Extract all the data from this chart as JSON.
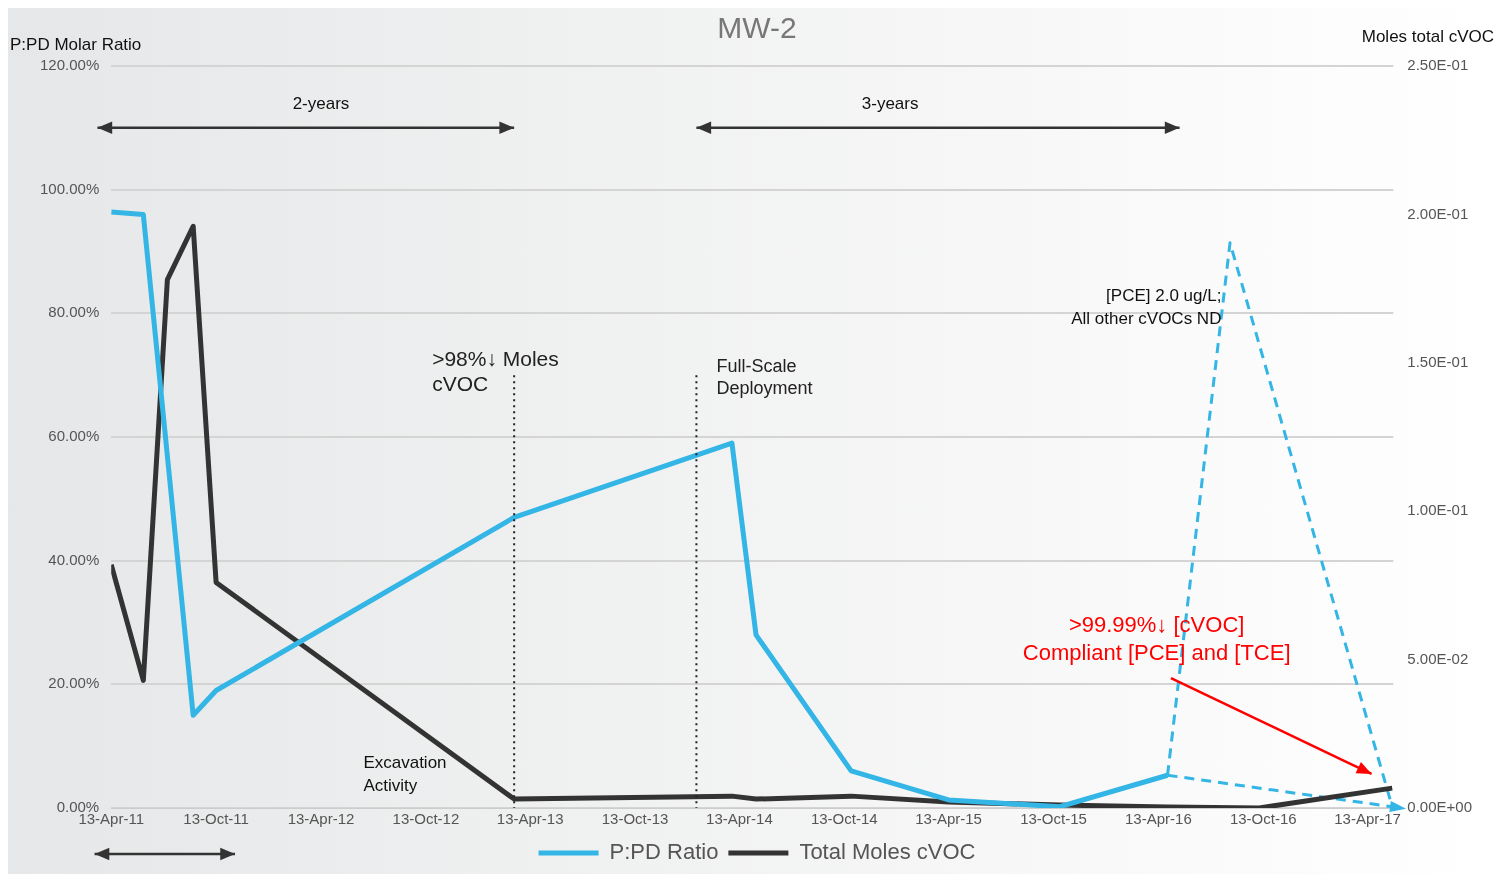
{
  "chart_data": {
    "type": "line",
    "title": "MW-2",
    "ylabel": "P:PD Molar Ratio",
    "y2label": "Moles total cVOC",
    "xlim": [
      "2011-04-13",
      "2017-05-28"
    ],
    "xticks": [
      {
        "value": "2011-04-13",
        "label": "13-Apr-11"
      },
      {
        "value": "2011-10-13",
        "label": "13-Oct-11"
      },
      {
        "value": "2012-04-13",
        "label": "13-Apr-12"
      },
      {
        "value": "2012-10-13",
        "label": "13-Oct-12"
      },
      {
        "value": "2013-04-13",
        "label": "13-Apr-13"
      },
      {
        "value": "2013-10-13",
        "label": "13-Oct-13"
      },
      {
        "value": "2014-04-13",
        "label": "13-Apr-14"
      },
      {
        "value": "2014-10-13",
        "label": "13-Oct-14"
      },
      {
        "value": "2015-04-13",
        "label": "13-Apr-15"
      },
      {
        "value": "2015-10-13",
        "label": "13-Oct-15"
      },
      {
        "value": "2016-04-13",
        "label": "13-Apr-16"
      },
      {
        "value": "2016-10-13",
        "label": "13-Oct-16"
      },
      {
        "value": "2017-04-13",
        "label": "13-Apr-17"
      }
    ],
    "ylim": [
      0,
      120
    ],
    "yticks": [
      {
        "value": 0,
        "label": "0.00%"
      },
      {
        "value": 20,
        "label": "20.00%"
      },
      {
        "value": 40,
        "label": "40.00%"
      },
      {
        "value": 60,
        "label": "60.00%"
      },
      {
        "value": 80,
        "label": "80.00%"
      },
      {
        "value": 100,
        "label": "100.00%"
      },
      {
        "value": 120,
        "label": "120.00%"
      }
    ],
    "y2lim": [
      0,
      0.25
    ],
    "y2ticks": [
      {
        "value": 0,
        "label": "0.00E+00"
      },
      {
        "value": 0.05,
        "label": "5.00E-02"
      },
      {
        "value": 0.1,
        "label": "1.00E-01"
      },
      {
        "value": 0.15,
        "label": "1.50E-01"
      },
      {
        "value": 0.2,
        "label": "2.00E-01"
      },
      {
        "value": 0.25,
        "label": "2.50E-01"
      }
    ],
    "grid": "y",
    "legend": "bottom",
    "marker": "none",
    "series": [
      {
        "name": "P:PD Ratio",
        "color": "#33b5e5",
        "x": [
          "2011-04-13",
          "2011-06-08",
          "2011-09-03",
          "2011-10-13",
          "2013-03-16",
          "2014-03-31",
          "2014-05-12",
          "2014-10-25",
          "2015-04-13",
          "2015-10-24",
          "2016-04-29"
        ],
        "values": [
          96.4,
          96,
          15,
          19,
          47,
          59,
          28,
          6,
          1.3,
          0.2,
          5.3
        ]
      },
      {
        "name": "Total Moles cVOC",
        "color": "#333333",
        "axis": "y2",
        "x": [
          "2011-04-13",
          "2011-06-08",
          "2011-07-20",
          "2011-09-03",
          "2011-10-13",
          "2013-03-16",
          "2014-03-31",
          "2014-05-12",
          "2014-10-25",
          "2015-04-13",
          "2015-10-24",
          "2016-04-29",
          "2016-10-06",
          "2017-05-26"
        ],
        "values": [
          0.082,
          0.043,
          0.178,
          0.196,
          0.076,
          0.003,
          0.004,
          0.003,
          0.004,
          0.002,
          0.001,
          0.0003,
          0,
          0.0067
        ]
      },
      {
        "color": "#33b5e5",
        "line_style": "dashed",
        "x": [
          "2016-04-29",
          "2016-08-16",
          "2017-05-26"
        ],
        "values": [
          5.3,
          91.4,
          0.2
        ]
      },
      {
        "color": "#33b5e5",
        "line_style": "dashed",
        "x": [
          "2016-04-29",
          "2017-05-26"
        ],
        "values": [
          5.3,
          0.2
        ]
      }
    ],
    "ref_lines": [
      {
        "axis": "x",
        "value": "2013-03-16",
        "label": ">98%↓ Moles\ncVOC",
        "line_style": "dotted",
        "color": "#222222"
      },
      {
        "axis": "x",
        "value": "2014-01-28",
        "label": "Full-Scale\nDeployment",
        "line_style": "dotted",
        "color": "#222222"
      }
    ],
    "annotations": [
      "2-years",
      "3-years",
      "Excavation\nActivity",
      "[PCE] 2.0 ug/L;\nAll other cVOCs ND",
      ">99.99%↓ [cVOC]\nCompliant [PCE] and [TCE]"
    ]
  }
}
